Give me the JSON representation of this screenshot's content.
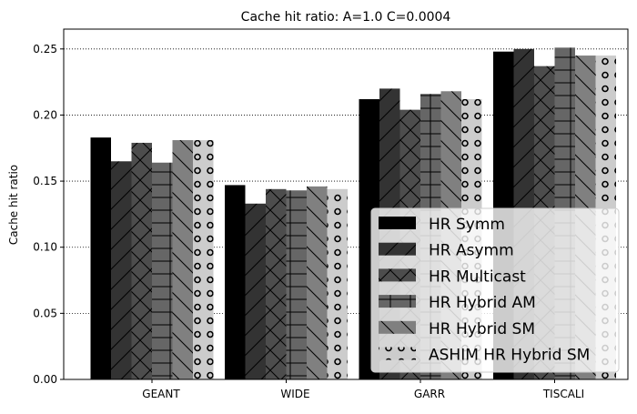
{
  "chart_data": {
    "type": "bar",
    "title": "Cache hit ratio: A=1.0 C=0.0004",
    "xlabel": "",
    "ylabel": "Cache hit ratio",
    "categories": [
      "GEANT",
      "WIDE",
      "GARR",
      "TISCALI"
    ],
    "ylim": [
      0,
      0.265
    ],
    "yticks": [
      0.0,
      0.05,
      0.1,
      0.15,
      0.2,
      0.25
    ],
    "ytick_labels": [
      "0.00",
      "0.05",
      "0.10",
      "0.15",
      "0.20",
      "0.25"
    ],
    "grid": "horizontal dotted",
    "legend_position": "lower-right",
    "series": [
      {
        "name": "HR Symm",
        "values": [
          0.183,
          0.147,
          0.212,
          0.248
        ],
        "color": "#000000",
        "hatch": "none"
      },
      {
        "name": "HR Asymm",
        "values": [
          0.165,
          0.133,
          0.22,
          0.25
        ],
        "color": "#333333",
        "hatch": "diagonal"
      },
      {
        "name": "HR Multicast",
        "values": [
          0.179,
          0.144,
          0.204,
          0.237
        ],
        "color": "#4d4d4d",
        "hatch": "cross"
      },
      {
        "name": "HR Hybrid AM",
        "values": [
          0.164,
          0.143,
          0.216,
          0.251
        ],
        "color": "#666666",
        "hatch": "grid"
      },
      {
        "name": "HR Hybrid SM",
        "values": [
          0.181,
          0.146,
          0.218,
          0.245
        ],
        "color": "#808080",
        "hatch": "backslash"
      },
      {
        "name": "ASHIM HR Hybrid SM",
        "values": [
          0.181,
          0.144,
          0.212,
          0.245
        ],
        "color": "#cccccc",
        "hatch": "circles"
      }
    ]
  }
}
